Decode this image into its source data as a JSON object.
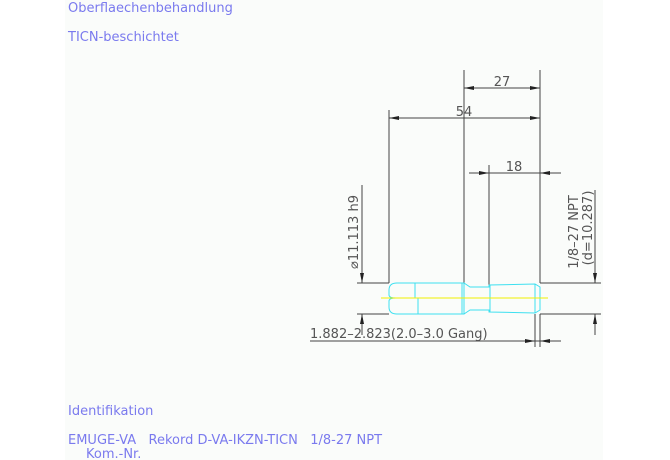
{
  "header": {
    "surface_label": "Oberflaechenbehandlung",
    "surface_value": "TICN-beschichtet"
  },
  "drawing": {
    "dim_27": "27",
    "dim_54": "54",
    "dim_18": "18",
    "dim_diameter": "⌀11.113  h9",
    "dim_thread": "1/8–27 NPT",
    "dim_thread_d": "(d=10.287)",
    "dim_bottom": "1.882–2.823(2.0–3.0 Gang)",
    "colors": {
      "text": "#7a7aee",
      "part": "#3ee0f0",
      "centerline": "#f0f000",
      "dimension": "#444444"
    }
  },
  "footer": {
    "ident_label": "Identifikation",
    "ident_value": "EMUGE-VA   Rekord D-VA-IKZN-TICN   1/8-27 NPT",
    "kom_label": "Kom.-Nr."
  }
}
